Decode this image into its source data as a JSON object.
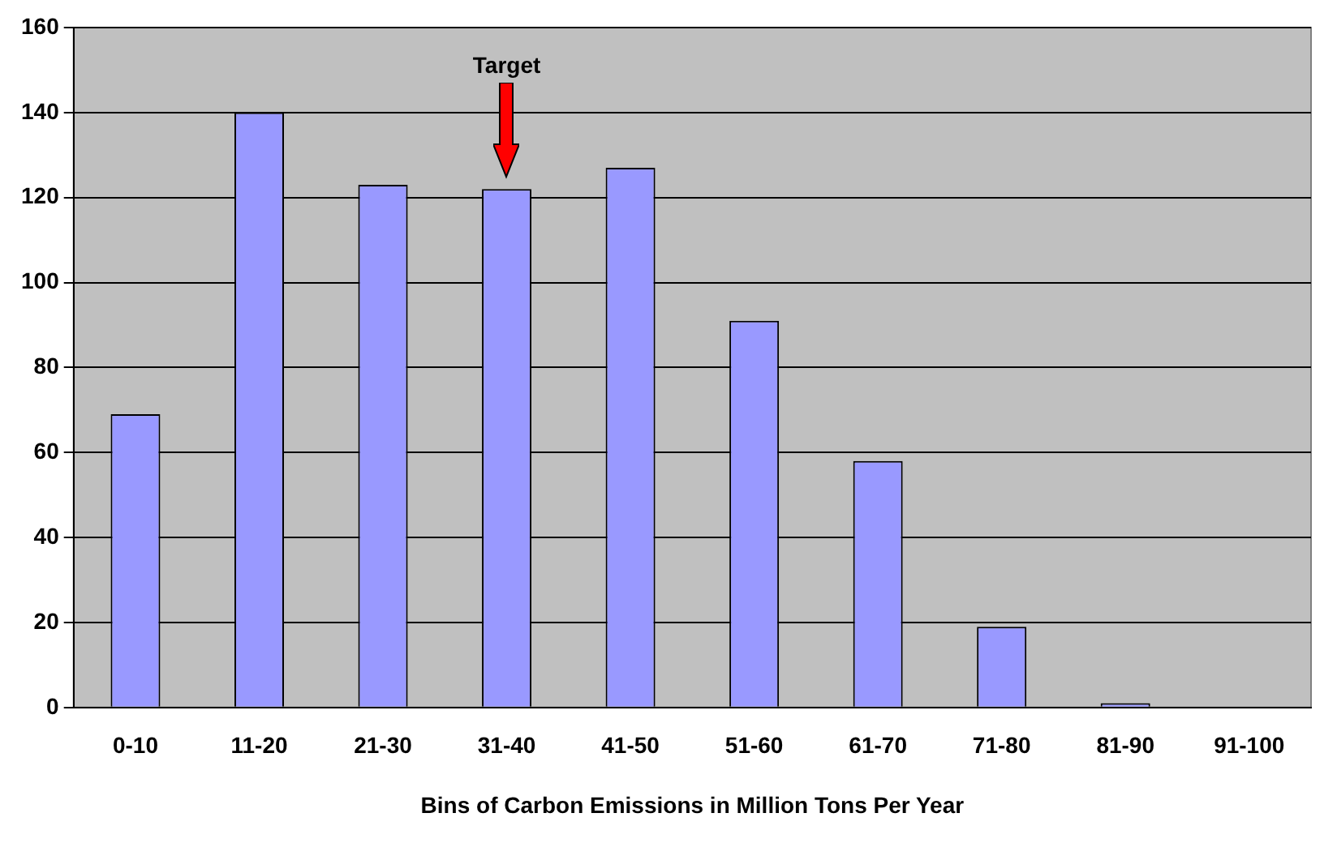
{
  "chart_data": {
    "type": "bar",
    "xlabel": "Bins of Carbon Emissions in Million Tons Per Year",
    "categories": [
      "0-10",
      "11-20",
      "21-30",
      "31-40",
      "41-50",
      "51-60",
      "61-70",
      "71-80",
      "81-90",
      "91-100"
    ],
    "values": [
      69,
      140,
      123,
      122,
      127,
      91,
      58,
      19,
      1,
      0
    ],
    "color": "#9999ff",
    "ylim": [
      0,
      160
    ],
    "yticks": [
      0,
      20,
      40,
      60,
      80,
      100,
      120,
      140,
      160
    ],
    "grid": "y",
    "legend": false,
    "annotations": [
      "Target"
    ]
  }
}
